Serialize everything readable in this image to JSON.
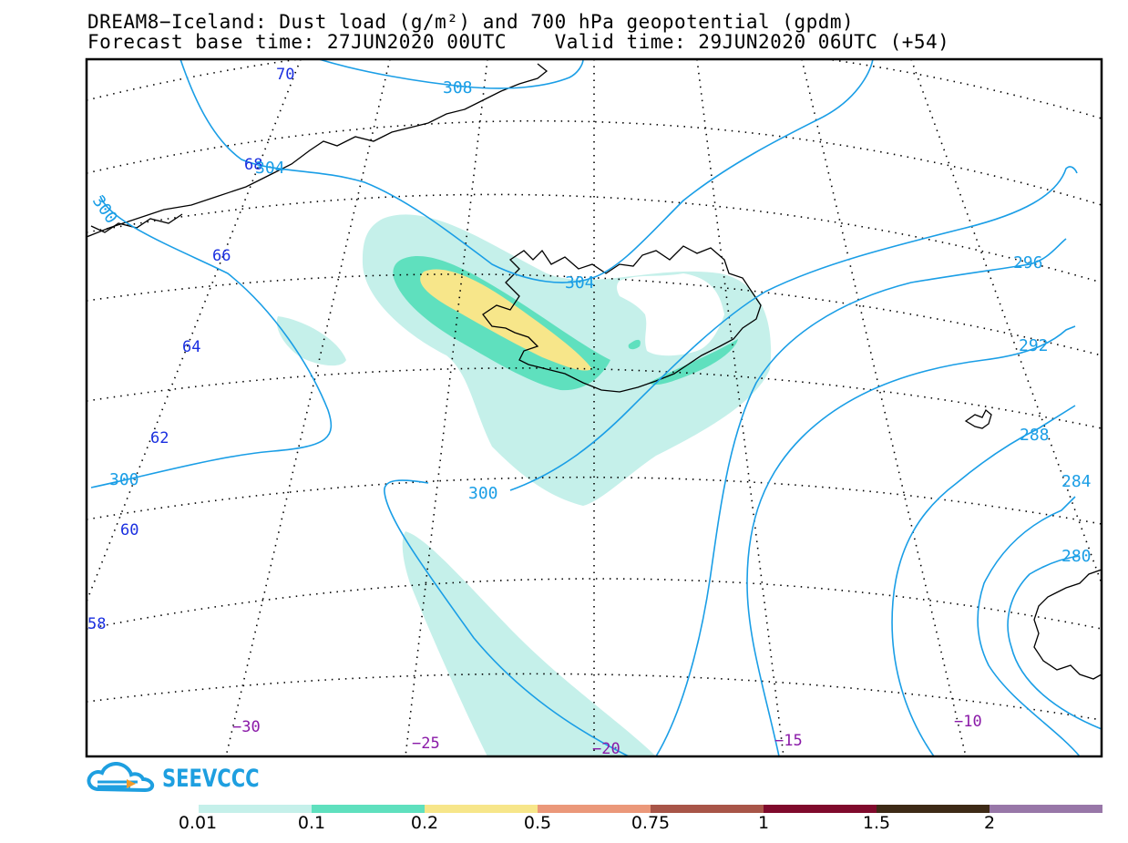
{
  "title": {
    "line1": "DREAM8−Iceland: Dust load (g/m²) and 700 hPa geopotential (gpdm)",
    "line2": "Forecast base time: 27JUN2020 00UTC    Valid time: 29JUN2020 06UTC (+54)"
  },
  "map": {
    "region": "Iceland",
    "variables": [
      "Dust load (g/m²)",
      "700 hPa geopotential (gpdm)"
    ],
    "latitude_labels": [
      "70",
      "68",
      "66",
      "64",
      "62",
      "60",
      "58"
    ],
    "longitude_labels": [
      "−30",
      "−25",
      "−20",
      "−15",
      "−10"
    ],
    "contour_labels": [
      "308",
      "304",
      "300",
      "304",
      "300",
      "300",
      "296",
      "292",
      "288",
      "284",
      "280"
    ],
    "contour_color": "#1a9ee6",
    "lat_label_color": "#1a2fe0",
    "lon_label_color": "#8a1aa8"
  },
  "logo": {
    "text": "SEEVCCC",
    "icon": "cloud-icon",
    "color": "#1e9fe0"
  },
  "colorbar": {
    "colors": [
      "#c5f0ea",
      "#5fe0be",
      "#f7e68a",
      "#eb987a",
      "#a85548",
      "#7f0a2c",
      "#3d2a16",
      "#9877a8"
    ],
    "labels": [
      "0.01",
      "0.1",
      "0.2",
      "0.5",
      "0.75",
      "1",
      "1.5",
      "2"
    ]
  }
}
